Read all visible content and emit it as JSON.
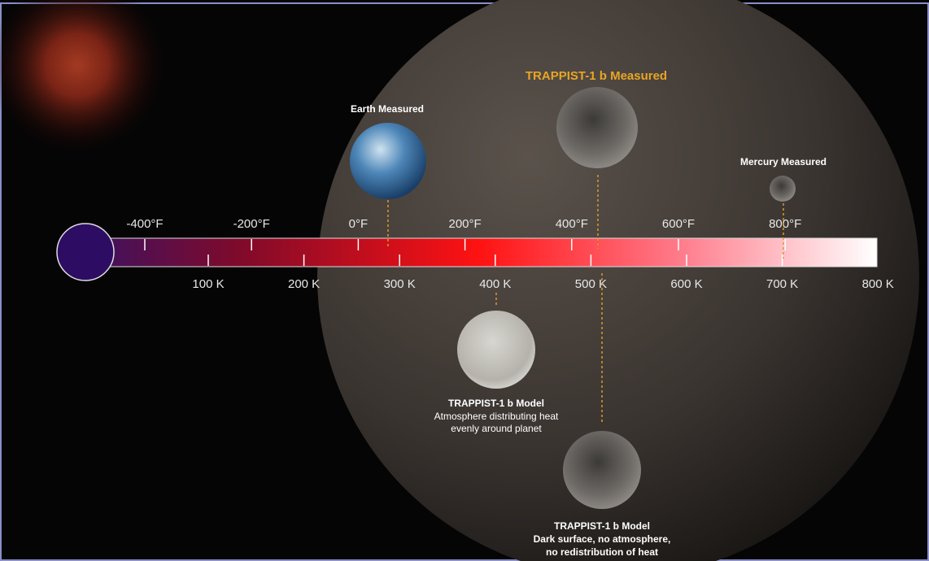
{
  "scale": {
    "fahrenheit": [
      "-400°F",
      "-200°F",
      "0°F",
      "200°F",
      "400°F",
      "600°F",
      "800°F"
    ],
    "kelvin": [
      "100 K",
      "200 K",
      "300 K",
      "400 K",
      "500 K",
      "600 K",
      "700 K",
      "800 K"
    ]
  },
  "planets": {
    "earth": {
      "label": "Earth Measured"
    },
    "trappist_measured": {
      "label": "TRAPPIST-1 b Measured"
    },
    "mercury": {
      "label": "Mercury Measured"
    },
    "model_atmosphere": {
      "title": "TRAPPIST-1 b Model",
      "lines": [
        "Atmosphere distributing heat",
        "evenly around planet"
      ]
    },
    "model_bare": {
      "title": "TRAPPIST-1 b Model",
      "lines": [
        "Dark surface, no atmosphere,",
        "no redistribution of heat"
      ]
    }
  }
}
